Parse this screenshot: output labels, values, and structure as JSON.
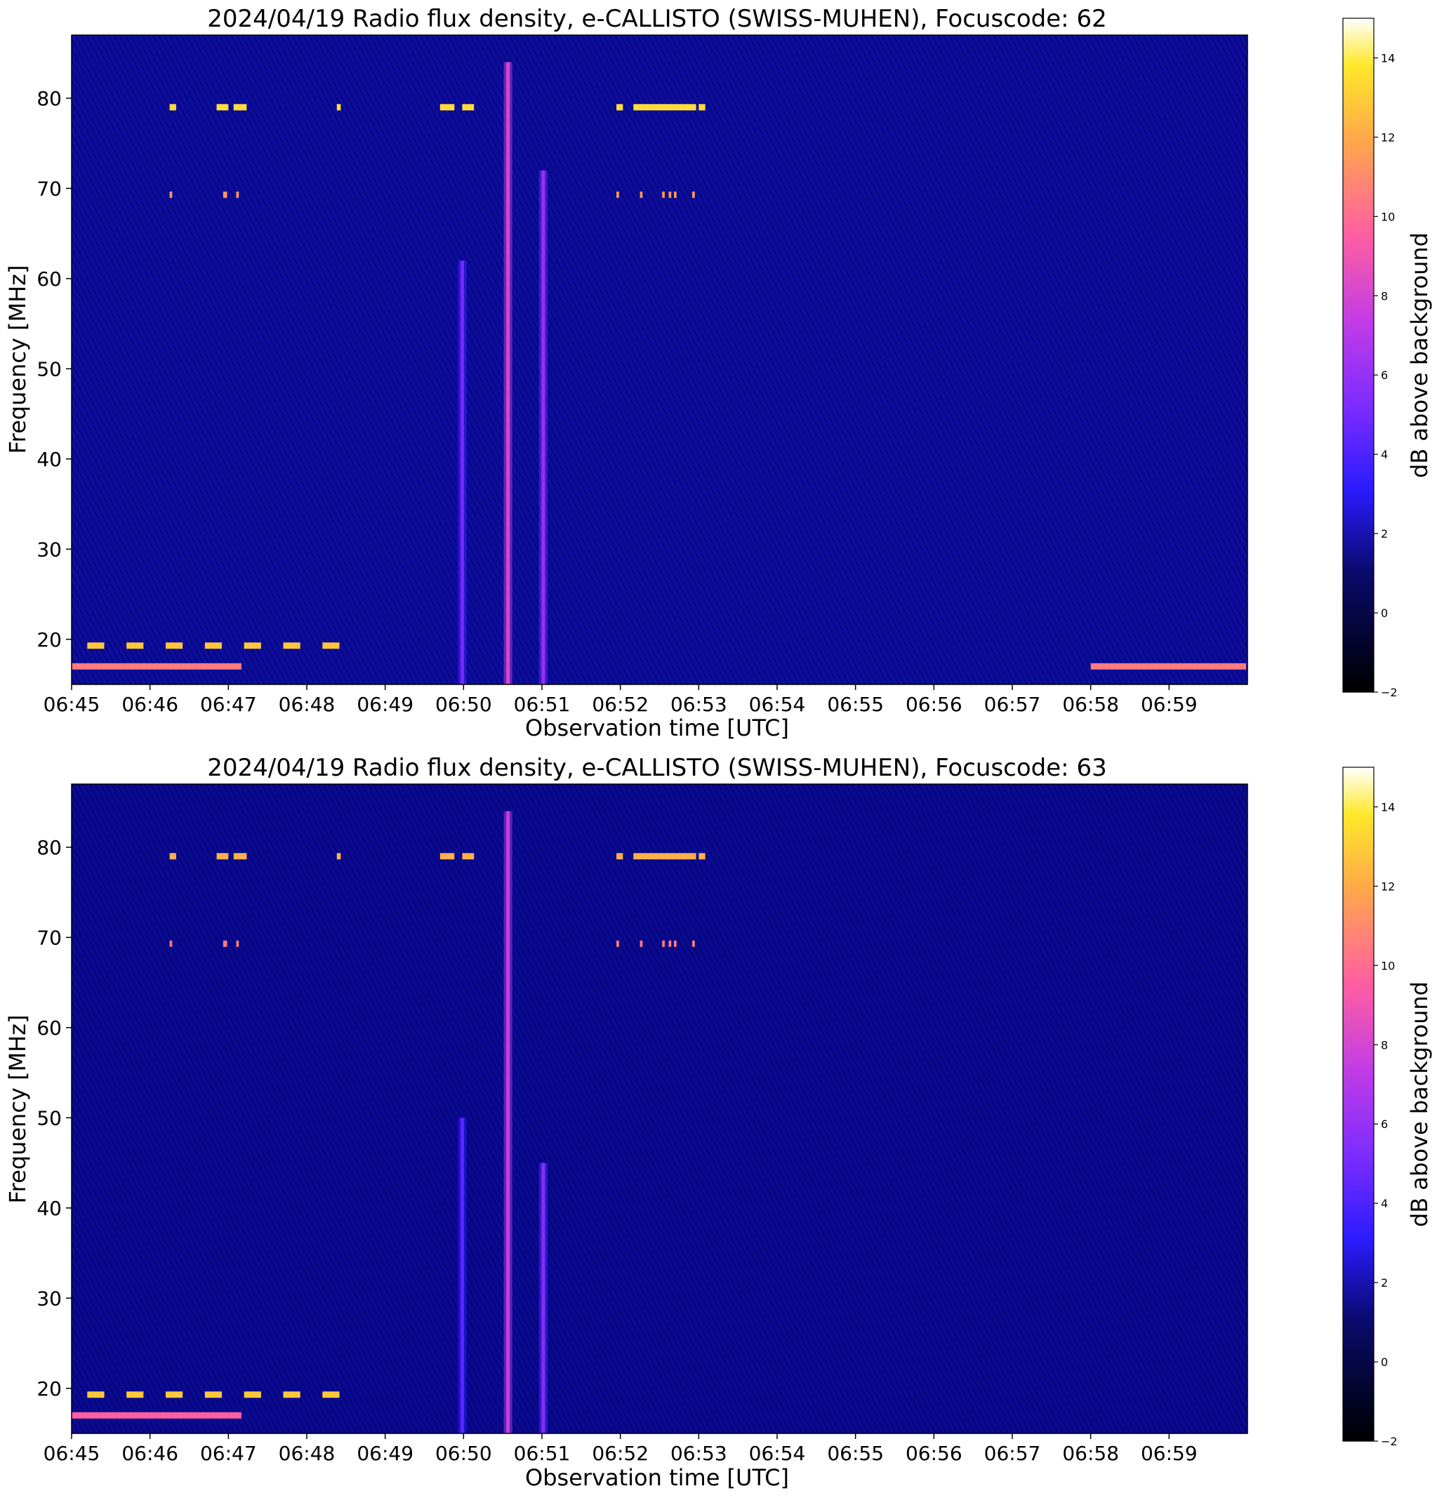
{
  "chart_data": [
    {
      "type": "heatmap",
      "title": "2024/04/19  Radio flux density, e-CALLISTO (SWISS-MUHEN), Focuscode: 62",
      "xlabel": "Observation time [UTC]",
      "ylabel": "Frequency [MHz]",
      "x_ticks": [
        "06:45",
        "06:46",
        "06:47",
        "06:48",
        "06:49",
        "06:50",
        "06:51",
        "06:52",
        "06:53",
        "06:54",
        "06:55",
        "06:56",
        "06:57",
        "06:58",
        "06:59"
      ],
      "xlim": [
        "06:45",
        "07:00"
      ],
      "y_ticks": [
        20,
        30,
        40,
        50,
        60,
        70,
        80
      ],
      "ylim": [
        15,
        87
      ],
      "colorbar": {
        "label": "dB above background",
        "ticks": [
          -2,
          0,
          2,
          4,
          6,
          8,
          10,
          12,
          14
        ],
        "range": [
          -2,
          15
        ],
        "colormap": "gnuplot2"
      },
      "features": {
        "background_db": 1.0,
        "rfi_bands_mhz": [
          {
            "freq": 79,
            "db": 13,
            "segments": [
              [
                "06:46:15",
                "06:46:20"
              ],
              [
                "06:46:51",
                "06:47:00"
              ],
              [
                "06:47:04",
                "06:47:14"
              ],
              [
                "06:48:23",
                "06:48:26"
              ],
              [
                "06:49:42",
                "06:49:53"
              ],
              [
                "06:49:59",
                "06:50:08"
              ],
              [
                "06:51:57",
                "06:52:02"
              ],
              [
                "06:52:10",
                "06:52:58"
              ],
              [
                "06:53:00",
                "06:53:05"
              ]
            ]
          },
          {
            "freq": 69.3,
            "db": 10,
            "segments": [
              [
                "06:46:15",
                "06:46:17"
              ],
              [
                "06:46:56",
                "06:46:59"
              ],
              [
                "06:47:06",
                "06:47:08"
              ],
              [
                "06:51:57",
                "06:51:59"
              ],
              [
                "06:52:15",
                "06:52:17"
              ],
              [
                "06:52:32",
                "06:52:34"
              ],
              [
                "06:52:37",
                "06:52:39"
              ],
              [
                "06:52:41",
                "06:52:43"
              ],
              [
                "06:52:55",
                "06:52:57"
              ]
            ]
          },
          {
            "freq": 19.3,
            "db": 12,
            "segments": [
              [
                "06:45:12",
                "06:45:25"
              ],
              [
                "06:45:42",
                "06:45:55"
              ],
              [
                "06:46:12",
                "06:46:25"
              ],
              [
                "06:46:42",
                "06:46:55"
              ],
              [
                "06:47:12",
                "06:47:25"
              ],
              [
                "06:47:42",
                "06:47:55"
              ],
              [
                "06:48:12",
                "06:48:25"
              ]
            ]
          },
          {
            "freq": 17.0,
            "db": 9,
            "segments": [
              [
                "06:45:00",
                "06:47:10"
              ],
              [
                "06:58:00",
                "06:59:59"
              ]
            ]
          }
        ],
        "burst_columns": [
          {
            "time": "06:49:59",
            "fmin": 15,
            "fmax": 62,
            "db": 2.5
          },
          {
            "time": "06:50:34",
            "fmin": 15,
            "fmax": 84,
            "db": 5.5
          },
          {
            "time": "06:51:01",
            "fmin": 15,
            "fmax": 72,
            "db": 3.5
          }
        ]
      }
    },
    {
      "type": "heatmap",
      "title": "2024/04/19  Radio flux density, e-CALLISTO (SWISS-MUHEN), Focuscode: 63",
      "xlabel": "Observation time [UTC]",
      "ylabel": "Frequency [MHz]",
      "x_ticks": [
        "06:45",
        "06:46",
        "06:47",
        "06:48",
        "06:49",
        "06:50",
        "06:51",
        "06:52",
        "06:53",
        "06:54",
        "06:55",
        "06:56",
        "06:57",
        "06:58",
        "06:59"
      ],
      "xlim": [
        "06:45",
        "07:00"
      ],
      "y_ticks": [
        20,
        30,
        40,
        50,
        60,
        70,
        80
      ],
      "ylim": [
        15,
        87
      ],
      "colorbar": {
        "label": "dB above background",
        "ticks": [
          -2,
          0,
          2,
          4,
          6,
          8,
          10,
          12,
          14
        ],
        "range": [
          -2,
          15
        ],
        "colormap": "gnuplot2"
      },
      "features": {
        "background_db": 0.8,
        "rfi_bands_mhz": [
          {
            "freq": 79,
            "db": 11,
            "segments": [
              [
                "06:46:15",
                "06:46:20"
              ],
              [
                "06:46:51",
                "06:47:00"
              ],
              [
                "06:47:04",
                "06:47:14"
              ],
              [
                "06:48:23",
                "06:48:26"
              ],
              [
                "06:49:42",
                "06:49:53"
              ],
              [
                "06:49:59",
                "06:50:08"
              ],
              [
                "06:51:57",
                "06:52:02"
              ],
              [
                "06:52:10",
                "06:52:58"
              ],
              [
                "06:53:00",
                "06:53:05"
              ]
            ]
          },
          {
            "freq": 69.3,
            "db": 9,
            "segments": [
              [
                "06:46:15",
                "06:46:17"
              ],
              [
                "06:46:56",
                "06:46:59"
              ],
              [
                "06:47:06",
                "06:47:08"
              ],
              [
                "06:51:57",
                "06:51:59"
              ],
              [
                "06:52:15",
                "06:52:17"
              ],
              [
                "06:52:32",
                "06:52:34"
              ],
              [
                "06:52:37",
                "06:52:39"
              ],
              [
                "06:52:41",
                "06:52:43"
              ],
              [
                "06:52:55",
                "06:52:57"
              ]
            ]
          },
          {
            "freq": 19.3,
            "db": 12,
            "segments": [
              [
                "06:45:12",
                "06:45:25"
              ],
              [
                "06:45:42",
                "06:45:55"
              ],
              [
                "06:46:12",
                "06:46:25"
              ],
              [
                "06:46:42",
                "06:46:55"
              ],
              [
                "06:47:12",
                "06:47:25"
              ],
              [
                "06:47:42",
                "06:47:55"
              ],
              [
                "06:48:12",
                "06:48:25"
              ]
            ]
          },
          {
            "freq": 17.0,
            "db": 8,
            "segments": [
              [
                "06:45:00",
                "06:47:10"
              ]
            ]
          }
        ],
        "burst_columns": [
          {
            "time": "06:49:59",
            "fmin": 15,
            "fmax": 50,
            "db": 2.0
          },
          {
            "time": "06:50:34",
            "fmin": 15,
            "fmax": 84,
            "db": 5.0
          },
          {
            "time": "06:51:01",
            "fmin": 15,
            "fmax": 45,
            "db": 3.0
          }
        ]
      }
    }
  ]
}
